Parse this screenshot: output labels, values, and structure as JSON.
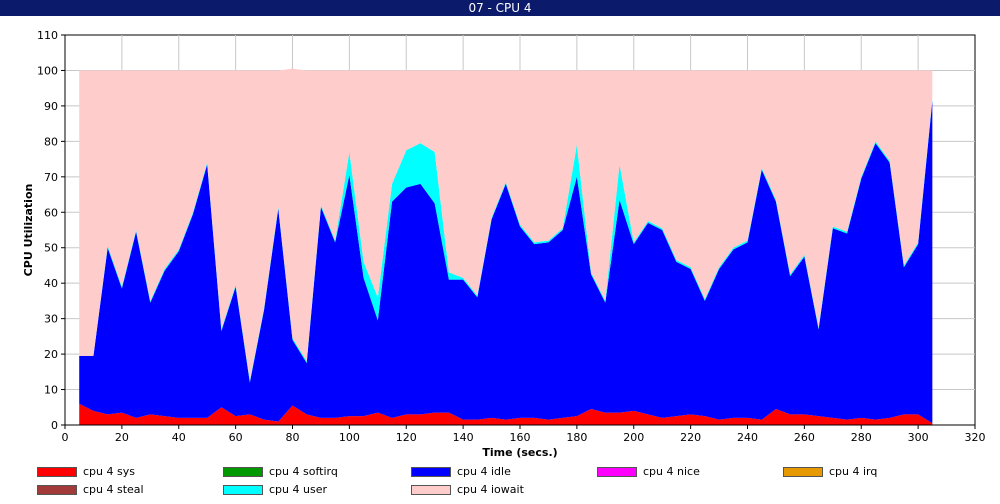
{
  "window": {
    "title": "07 - CPU 4"
  },
  "chart_data": {
    "type": "area",
    "stacked": true,
    "title": "",
    "xlabel": "Time (secs.)",
    "ylabel": "CPU Utilization",
    "xlim": [
      0,
      320
    ],
    "ylim": [
      0,
      110
    ],
    "x_ticks": [
      0,
      20,
      40,
      60,
      80,
      100,
      120,
      140,
      160,
      180,
      200,
      220,
      240,
      260,
      280,
      300,
      320
    ],
    "y_ticks": [
      0,
      10,
      20,
      30,
      40,
      50,
      60,
      70,
      80,
      90,
      100,
      110
    ],
    "grid": true,
    "legend_position": "bottom",
    "x": [
      5,
      10,
      15,
      20,
      25,
      30,
      35,
      40,
      45,
      50,
      55,
      60,
      65,
      70,
      75,
      80,
      85,
      90,
      95,
      100,
      105,
      110,
      115,
      120,
      125,
      130,
      135,
      140,
      145,
      150,
      155,
      160,
      165,
      170,
      175,
      180,
      185,
      190,
      195,
      200,
      205,
      210,
      215,
      220,
      225,
      230,
      235,
      240,
      245,
      250,
      255,
      260,
      265,
      270,
      275,
      280,
      285,
      290,
      295,
      300,
      305
    ],
    "series": [
      {
        "name": "cpu 4 sys",
        "color": "#ff0000",
        "values": [
          6,
          4,
          3,
          3.5,
          2,
          3,
          2.5,
          2,
          2,
          2,
          5,
          2.5,
          3,
          1.5,
          1,
          5.5,
          3,
          2,
          2,
          2.5,
          2.5,
          3.5,
          2,
          3,
          3,
          3.5,
          3.5,
          1.5,
          1.5,
          2,
          1.5,
          2,
          2,
          1.5,
          2,
          2.5,
          4.5,
          3.5,
          3.5,
          4,
          3,
          2,
          2.5,
          3,
          2.5,
          1.5,
          2,
          2,
          1.5,
          4.5,
          3,
          3,
          2.5,
          2,
          1.5,
          2,
          1.5,
          2,
          3,
          3,
          0.5
        ]
      },
      {
        "name": "cpu 4 softirq",
        "color": "#009900",
        "values": [
          0,
          0,
          0,
          0,
          0,
          0,
          0,
          0,
          0,
          0,
          0,
          0,
          0,
          0,
          0,
          0,
          0,
          0,
          0,
          0,
          0,
          0,
          0,
          0,
          0,
          0,
          0,
          0,
          0,
          0,
          0,
          0,
          0,
          0,
          0,
          0,
          0,
          0,
          0,
          0,
          0,
          0,
          0,
          0,
          0,
          0,
          0,
          0,
          0,
          0,
          0,
          0,
          0,
          0,
          0,
          0,
          0,
          0,
          0,
          0,
          0
        ]
      },
      {
        "name": "cpu 4 idle",
        "color": "#0000ff",
        "values": [
          13.5,
          15.5,
          47,
          35,
          52.5,
          31.5,
          41,
          47,
          57.5,
          71.5,
          21.5,
          36.5,
          9,
          31,
          60,
          18.5,
          14.5,
          59.5,
          49.5,
          68,
          39,
          26,
          61,
          64,
          65,
          59,
          37.5,
          39.5,
          34.5,
          56,
          66.5,
          54,
          49,
          50,
          53,
          67.5,
          38,
          31,
          60,
          47,
          54,
          53,
          43.5,
          41,
          32.5,
          42.5,
          47.5,
          49.5,
          70.5,
          58.5,
          39,
          44.5,
          24.5,
          53.5,
          52.5,
          67.5,
          78,
          72,
          41.5,
          48,
          91
        ]
      },
      {
        "name": "cpu 4 nice",
        "color": "#ff00ff",
        "values": [
          0,
          0,
          0,
          0,
          0,
          0,
          0,
          0,
          0,
          0,
          0,
          0,
          0,
          0,
          0,
          0,
          0,
          0,
          0,
          0,
          0,
          0,
          0,
          0,
          0,
          0,
          0,
          0,
          0,
          0,
          0,
          0,
          0,
          0,
          0,
          0,
          0,
          0,
          0,
          0,
          0,
          0,
          0,
          0,
          0,
          0,
          0,
          0,
          0,
          0,
          0,
          0,
          0,
          0,
          0,
          0,
          0,
          0,
          0,
          0,
          0
        ]
      },
      {
        "name": "cpu 4 irq",
        "color": "#e69900",
        "values": [
          0,
          0,
          0,
          0,
          0,
          0,
          0,
          0,
          0,
          0,
          0,
          0,
          0,
          0,
          0,
          0,
          0,
          0,
          0,
          0,
          0,
          0,
          0,
          0,
          0,
          0,
          0,
          0,
          0,
          0,
          0,
          0,
          0,
          0,
          0,
          0,
          0,
          0,
          0,
          0,
          0,
          0,
          0,
          0,
          0,
          0,
          0,
          0,
          0,
          0,
          0,
          0,
          0,
          0,
          0,
          0,
          0,
          0,
          0,
          0,
          0
        ]
      },
      {
        "name": "cpu 4 steal",
        "color": "#a33a3a",
        "values": [
          0,
          0,
          0,
          0,
          0,
          0,
          0,
          0,
          0,
          0,
          0,
          0,
          0,
          0,
          0,
          0,
          0,
          0,
          0,
          0,
          0,
          0,
          0,
          0,
          0,
          0,
          0,
          0,
          0,
          0,
          0,
          0,
          0,
          0,
          0,
          0,
          0,
          0,
          0,
          0,
          0,
          0,
          0,
          0,
          0,
          0,
          0,
          0,
          0,
          0,
          0,
          0,
          0,
          0,
          0,
          0,
          0,
          0,
          0,
          0,
          0
        ]
      },
      {
        "name": "cpu 4 user",
        "color": "#00ffff",
        "values": [
          0,
          0,
          0.5,
          0.5,
          0.5,
          0.5,
          0.5,
          0.5,
          0.5,
          0.5,
          0.5,
          0.5,
          0.5,
          0.5,
          0.5,
          0.5,
          0.5,
          0.5,
          0.5,
          6.5,
          4.5,
          6.5,
          5,
          10.5,
          11.5,
          14.5,
          2,
          0.5,
          0.5,
          0.5,
          0.5,
          0.5,
          0.5,
          0.5,
          0.5,
          9,
          0.5,
          0.5,
          10,
          0.5,
          0.5,
          0.5,
          0.5,
          0.5,
          0.5,
          0.5,
          0.5,
          0.5,
          0.5,
          0.5,
          0.5,
          0.5,
          0.5,
          0.5,
          0.5,
          0.5,
          0.5,
          0.5,
          0.5,
          0.5,
          0.5
        ]
      },
      {
        "name": "cpu 4 iowait",
        "color": "#ffcccc",
        "values": [
          80.5,
          80.5,
          49.5,
          61,
          45,
          65,
          56,
          50.5,
          40,
          26,
          73,
          60.5,
          87.5,
          67,
          38.5,
          76,
          82,
          38,
          48,
          23,
          54,
          64,
          32,
          22.5,
          20.5,
          23,
          57,
          58.5,
          63.5,
          41.5,
          31.5,
          43.5,
          48.5,
          48,
          44.5,
          21,
          57,
          65,
          26.5,
          48.5,
          42.5,
          44.5,
          53.5,
          55.5,
          64.5,
          55.5,
          50,
          48,
          27.5,
          36.5,
          57.5,
          52,
          72.5,
          44,
          45.5,
          30,
          20,
          25.5,
          55,
          48.5,
          8
        ]
      }
    ]
  }
}
